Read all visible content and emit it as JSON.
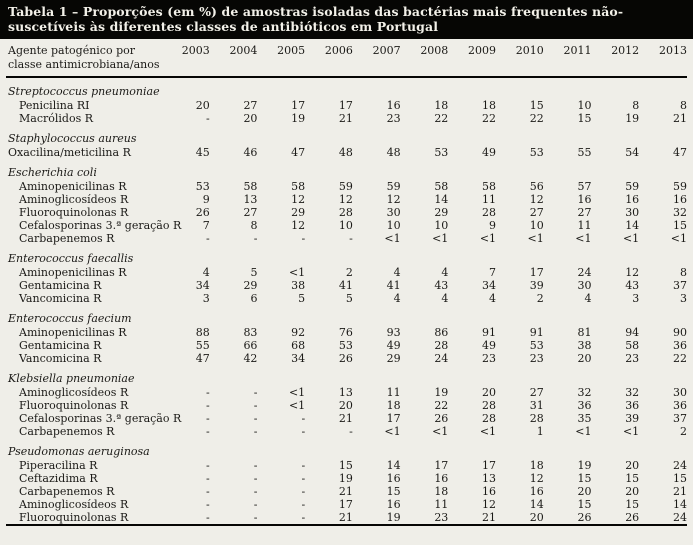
{
  "title": "Tabela 1 – Proporções (em %) de amostras isoladas das bactérias mais frequentes não-suscetíveis às diferentes classes de antibióticos em Portugal",
  "header": {
    "label_line1": "Agente patogénico por",
    "label_line2": "classe antimicrobiana/anos",
    "years": [
      "2003",
      "2004",
      "2005",
      "2006",
      "2007",
      "2008",
      "2009",
      "2010",
      "2011",
      "2012",
      "2013"
    ]
  },
  "colors": {
    "band_bg": "#060604",
    "band_text": "#f3f1e9",
    "page_bg": "#efeee8",
    "text": "#1b1a17",
    "rule": "#060604"
  },
  "table": {
    "sections": [
      {
        "name": "Streptococcus pneumoniae",
        "rows": [
          {
            "label": "Penicilina RI",
            "values": [
              "20",
              "27",
              "17",
              "17",
              "16",
              "18",
              "18",
              "15",
              "10",
              "8",
              "8"
            ]
          },
          {
            "label": "Macrólidos R",
            "values": [
              "-",
              "20",
              "19",
              "21",
              "23",
              "22",
              "22",
              "22",
              "15",
              "19",
              "21"
            ]
          }
        ]
      },
      {
        "name": "Staphylococcus aureus",
        "rows": [
          {
            "label": "Oxacilina/meticilina R",
            "indent": false,
            "values": [
              "45",
              "46",
              "47",
              "48",
              "48",
              "53",
              "49",
              "53",
              "55",
              "54",
              "47"
            ]
          }
        ]
      },
      {
        "name": "Escherichia coli",
        "rows": [
          {
            "label": "Aminopenicilinas R",
            "values": [
              "53",
              "58",
              "58",
              "59",
              "59",
              "58",
              "58",
              "56",
              "57",
              "59",
              "59"
            ]
          },
          {
            "label": "Aminoglicosídeos R",
            "values": [
              "9",
              "13",
              "12",
              "12",
              "12",
              "14",
              "11",
              "12",
              "16",
              "16",
              "16"
            ]
          },
          {
            "label": "Fluoroquinolonas R",
            "values": [
              "26",
              "27",
              "29",
              "28",
              "30",
              "29",
              "28",
              "27",
              "27",
              "30",
              "32"
            ]
          },
          {
            "label": "Cefalosporinas 3.ª geração R",
            "values": [
              "7",
              "8",
              "12",
              "10",
              "10",
              "10",
              "9",
              "10",
              "11",
              "14",
              "15"
            ]
          },
          {
            "label": "Carbapenemos R",
            "values": [
              "-",
              "-",
              "-",
              "-",
              "<1",
              "<1",
              "<1",
              "<1",
              "<1",
              "<1",
              "<1"
            ]
          }
        ]
      },
      {
        "name": "Enterococcus faecallis",
        "rows": [
          {
            "label": "Aminopenicilinas R",
            "values": [
              "4",
              "5",
              "<1",
              "2",
              "4",
              "4",
              "7",
              "17",
              "24",
              "12",
              "8"
            ]
          },
          {
            "label": "Gentamicina R",
            "values": [
              "34",
              "29",
              "38",
              "41",
              "41",
              "43",
              "34",
              "39",
              "30",
              "43",
              "37"
            ]
          },
          {
            "label": "Vancomicina R",
            "values": [
              "3",
              "6",
              "5",
              "5",
              "4",
              "4",
              "4",
              "2",
              "4",
              "3",
              "3"
            ]
          }
        ]
      },
      {
        "name": "Enterococcus faecium",
        "rows": [
          {
            "label": "Aminopenicilinas R",
            "values": [
              "88",
              "83",
              "92",
              "76",
              "93",
              "86",
              "91",
              "91",
              "81",
              "94",
              "90"
            ]
          },
          {
            "label": "Gentamicina R",
            "values": [
              "55",
              "66",
              "68",
              "53",
              "49",
              "28",
              "49",
              "53",
              "38",
              "58",
              "36"
            ]
          },
          {
            "label": "Vancomicina R",
            "values": [
              "47",
              "42",
              "34",
              "26",
              "29",
              "24",
              "23",
              "23",
              "20",
              "23",
              "22"
            ]
          }
        ]
      },
      {
        "name": "Klebsiella pneumoniae",
        "rows": [
          {
            "label": "Aminoglicosídeos R",
            "values": [
              "-",
              "-",
              "<1",
              "13",
              "11",
              "19",
              "20",
              "27",
              "32",
              "32",
              "30"
            ]
          },
          {
            "label": "Fluoroquinolonas R",
            "values": [
              "-",
              "-",
              "<1",
              "20",
              "18",
              "22",
              "28",
              "31",
              "36",
              "36",
              "36"
            ]
          },
          {
            "label": "Cefalosporinas 3.ª geração R",
            "values": [
              "-",
              "-",
              "-",
              "21",
              "17",
              "26",
              "28",
              "28",
              "35",
              "39",
              "37"
            ]
          },
          {
            "label": "Carbapenemos R",
            "values": [
              "-",
              "-",
              "-",
              "-",
              "<1",
              "<1",
              "<1",
              "1",
              "<1",
              "<1",
              "2"
            ]
          }
        ]
      },
      {
        "name": "Pseudomonas aeruginosa",
        "rows": [
          {
            "label": "Piperacilina R",
            "values": [
              "-",
              "-",
              "-",
              "15",
              "14",
              "17",
              "17",
              "18",
              "19",
              "20",
              "24"
            ]
          },
          {
            "label": "Ceftazidima R",
            "values": [
              "-",
              "-",
              "-",
              "19",
              "16",
              "16",
              "13",
              "12",
              "15",
              "15",
              "15"
            ]
          },
          {
            "label": "Carbapenemos R",
            "values": [
              "-",
              "-",
              "-",
              "21",
              "15",
              "18",
              "16",
              "16",
              "20",
              "20",
              "21"
            ]
          },
          {
            "label": "Aminoglicosídeos R",
            "values": [
              "-",
              "-",
              "-",
              "17",
              "16",
              "11",
              "12",
              "14",
              "15",
              "15",
              "14"
            ]
          },
          {
            "label": "Fluoroquinolonas R",
            "values": [
              "-",
              "-",
              "-",
              "21",
              "19",
              "23",
              "21",
              "20",
              "26",
              "26",
              "24"
            ]
          }
        ]
      }
    ]
  }
}
